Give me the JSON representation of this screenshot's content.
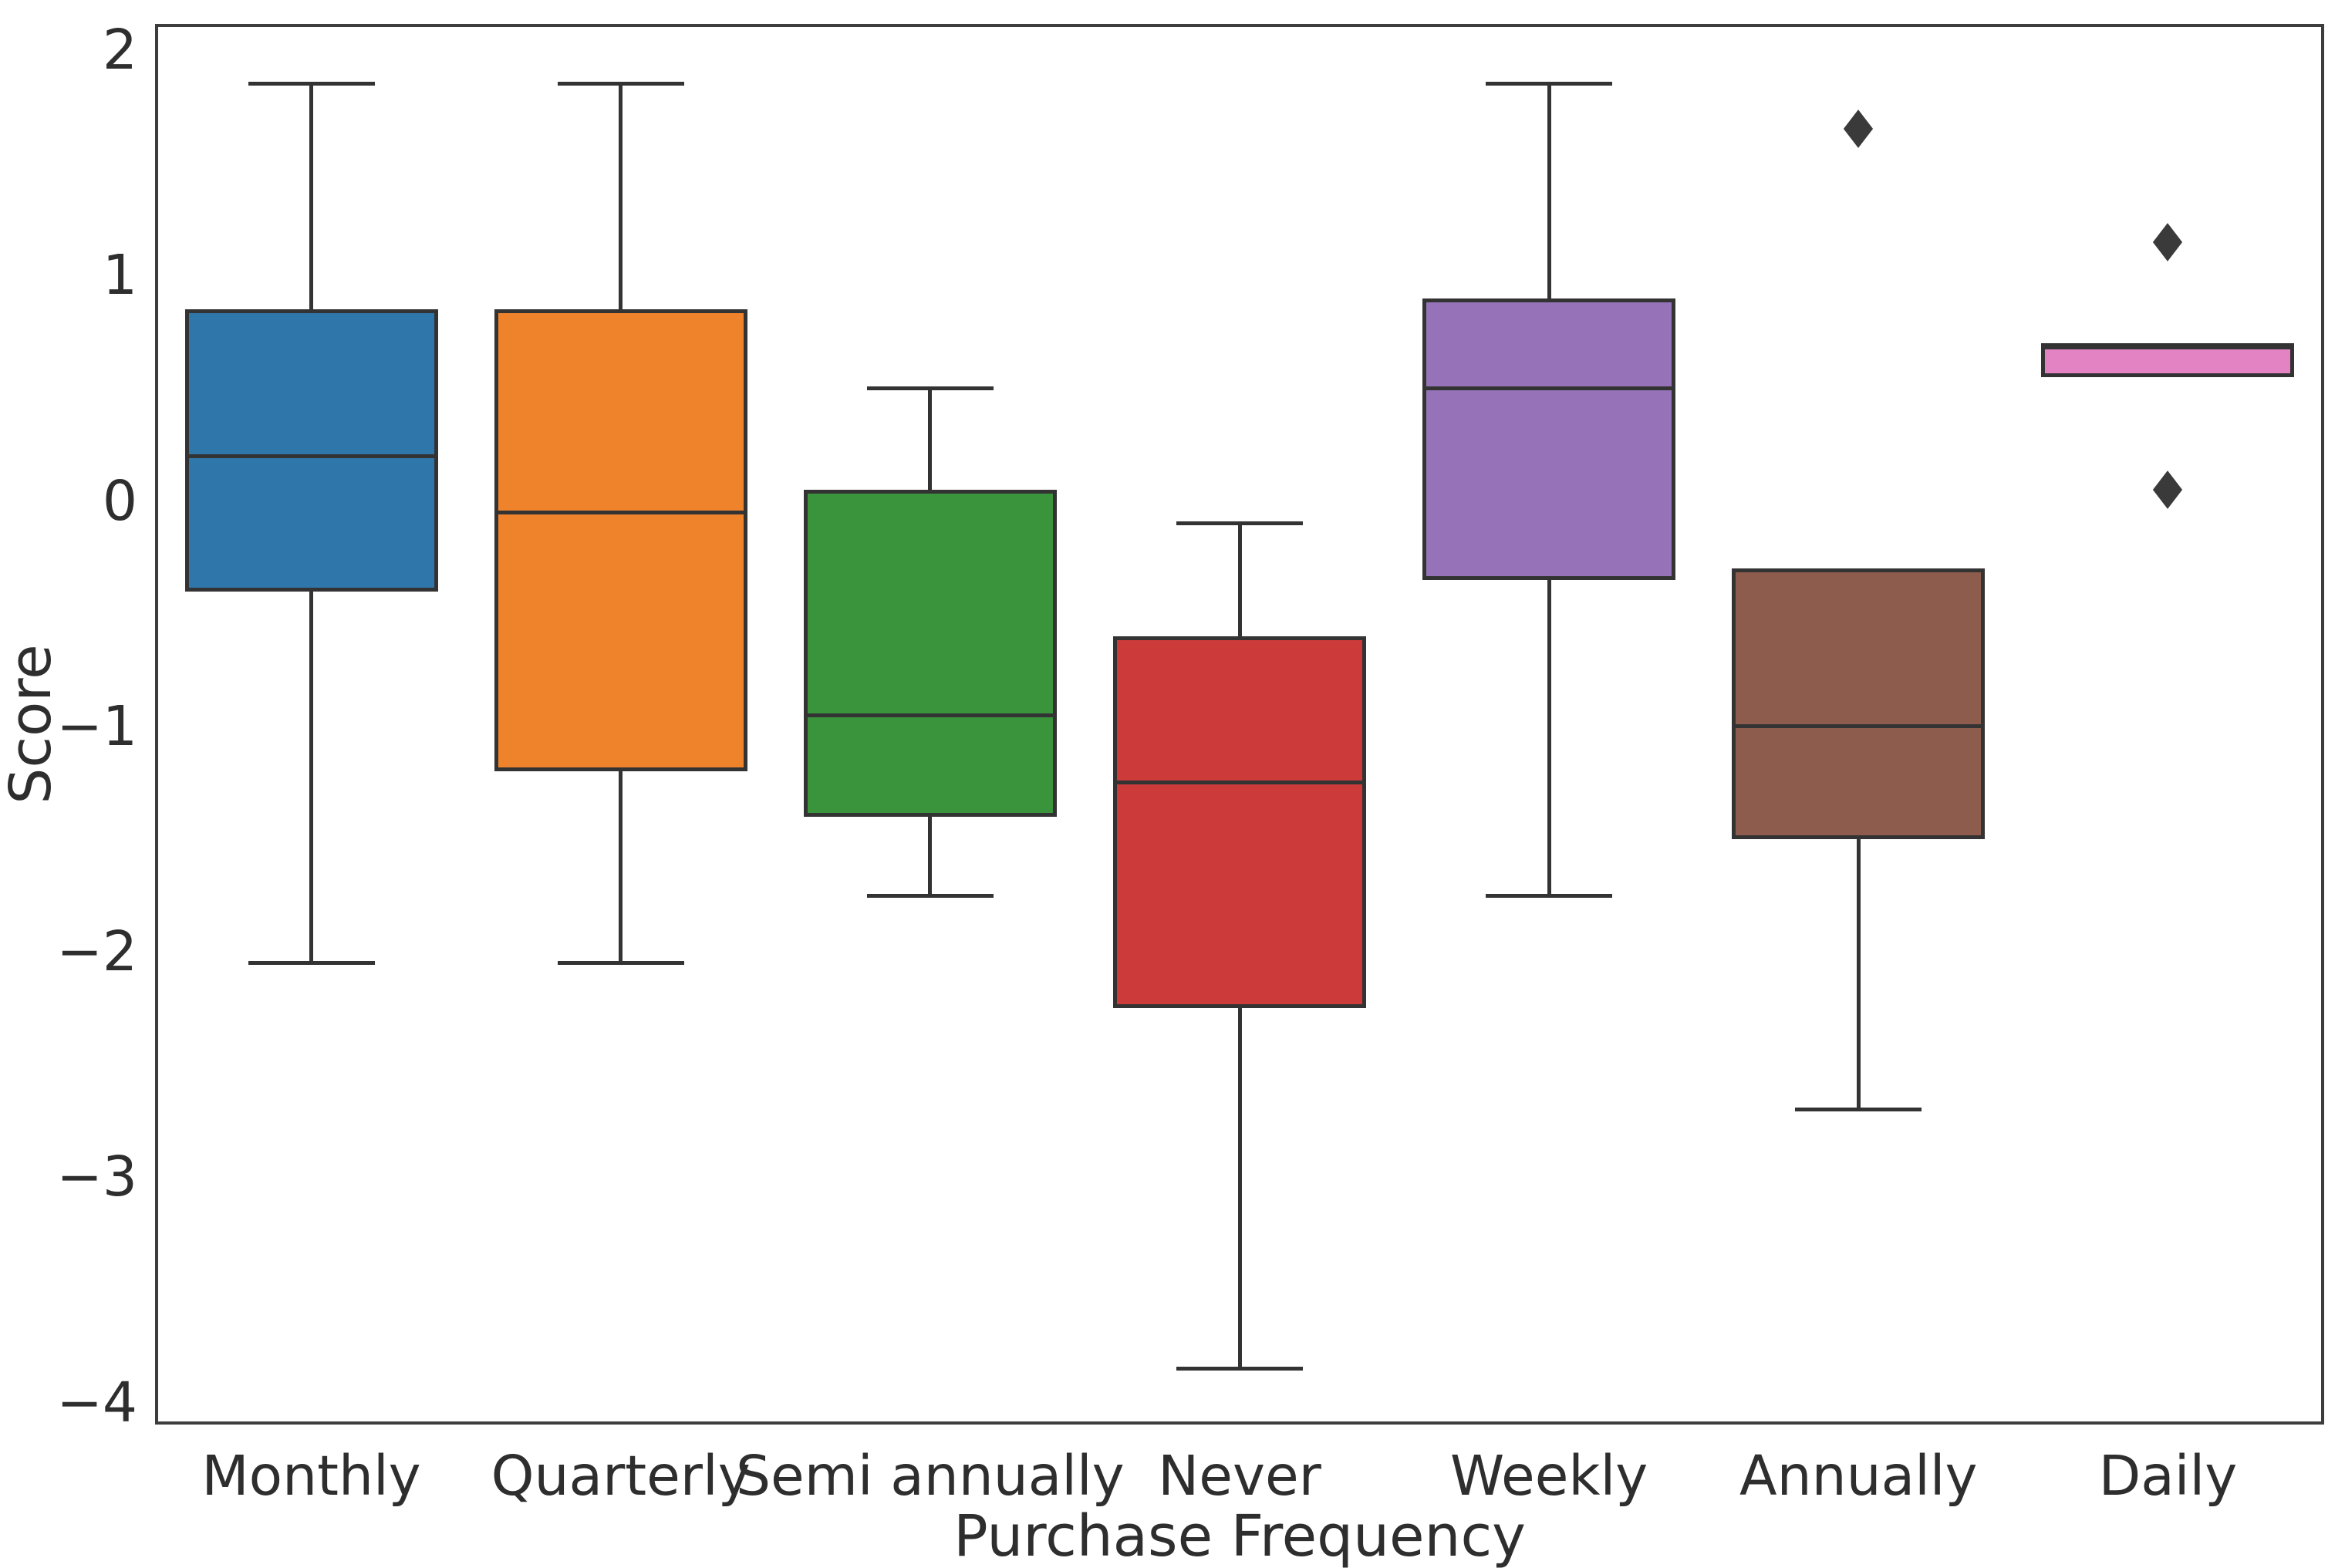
{
  "figure": {
    "background": "#ffffff"
  },
  "axes": {
    "ylabel": "Score",
    "xlabel": "Purchase Frequency",
    "y_tick_labels": [
      "2",
      "1",
      "0",
      "−1",
      "−2",
      "−3",
      "−4"
    ]
  },
  "chart_data": {
    "type": "box",
    "title": "",
    "xlabel": "Purchase Frequency",
    "ylabel": "Score",
    "grid": false,
    "legend": null,
    "ylim": [
      -4.09,
      2.11
    ],
    "y_ticks": [
      2,
      1,
      0,
      -1,
      -2,
      -3,
      -4
    ],
    "categories": [
      "Monthly",
      "Quarterly",
      "Semi annually",
      "Never",
      "Weekly",
      "Annually",
      "Daily"
    ],
    "series": [
      {
        "category": "Monthly",
        "whisker_low": -2.05,
        "q1": -0.4,
        "median": 0.2,
        "q3": 0.85,
        "whisker_high": 1.85,
        "outliers": [],
        "color": "#2f76aa"
      },
      {
        "category": "Quarterly",
        "whisker_low": -2.05,
        "q1": -1.2,
        "median": -0.05,
        "q3": 0.85,
        "whisker_high": 1.85,
        "outliers": [],
        "color": "#ef832c"
      },
      {
        "category": "Semi annually",
        "whisker_low": -1.75,
        "q1": -1.4,
        "median": -0.95,
        "q3": 0.05,
        "whisker_high": 0.5,
        "outliers": [],
        "color": "#3a943b"
      },
      {
        "category": "Never",
        "whisker_low": -3.85,
        "q1": -2.25,
        "median": -1.25,
        "q3": -0.6,
        "whisker_high": -0.1,
        "outliers": [],
        "color": "#cc3a3a"
      },
      {
        "category": "Weekly",
        "whisker_low": -1.75,
        "q1": -0.35,
        "median": 0.5,
        "q3": 0.9,
        "whisker_high": 1.85,
        "outliers": [],
        "color": "#9673b9"
      },
      {
        "category": "Annually",
        "whisker_low": -2.7,
        "q1": -1.5,
        "median": -1.0,
        "q3": -0.3,
        "whisker_high": -0.3,
        "outliers": [
          1.65
        ],
        "color": "#8e5c4d"
      },
      {
        "category": "Daily",
        "whisker_low": 0.55,
        "q1": 0.55,
        "median": 0.68,
        "q3": 0.7,
        "whisker_high": 0.7,
        "outliers": [
          1.15,
          0.05
        ],
        "color": "#e483c4"
      }
    ],
    "styles": {
      "line_color": "#333333",
      "spine_color": "#3d3d3d",
      "text_color": "#2e2e2e",
      "outlier_marker": "diamond"
    }
  }
}
